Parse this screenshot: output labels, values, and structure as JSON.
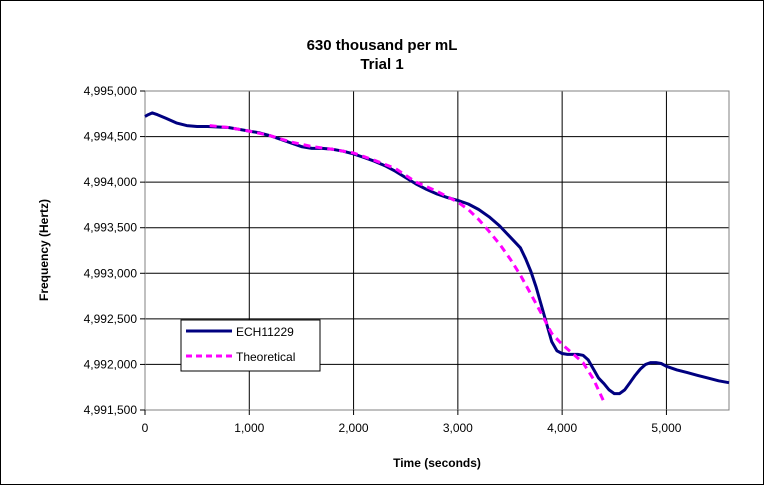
{
  "chart_data": {
    "type": "line",
    "title": "630 thousand per mL",
    "subtitle": "Trial 1",
    "xlabel": "Time (seconds)",
    "ylabel": "Frequency (Hertz)",
    "xlim": [
      0,
      5600
    ],
    "ylim": [
      4991500,
      4995000
    ],
    "x_ticks": [
      0,
      1000,
      2000,
      3000,
      4000,
      5000
    ],
    "x_tick_labels": [
      "0",
      "1,000",
      "2,000",
      "3,000",
      "4,000",
      "5,000"
    ],
    "y_ticks": [
      4991500,
      4992000,
      4992500,
      4993000,
      4993500,
      4994000,
      4994500,
      4995000
    ],
    "y_tick_labels": [
      "4,991,500",
      "4,992,000",
      "4,992,500",
      "4,993,000",
      "4,993,500",
      "4,994,000",
      "4,994,500",
      "4,995,000"
    ],
    "grid": true,
    "legend_position": "lower-left",
    "series": [
      {
        "name": "ECH11229",
        "color": "#000080",
        "style": "solid",
        "x": [
          0,
          30,
          70,
          120,
          200,
          300,
          400,
          500,
          600,
          700,
          800,
          900,
          1000,
          1100,
          1200,
          1300,
          1400,
          1500,
          1600,
          1700,
          1800,
          1900,
          2000,
          2100,
          2200,
          2300,
          2400,
          2500,
          2600,
          2700,
          2800,
          2900,
          3000,
          3100,
          3200,
          3300,
          3400,
          3500,
          3600,
          3650,
          3700,
          3750,
          3800,
          3850,
          3900,
          3950,
          4000,
          4050,
          4100,
          4150,
          4200,
          4250,
          4300,
          4350,
          4400,
          4450,
          4500,
          4550,
          4600,
          4650,
          4700,
          4750,
          4800,
          4850,
          4900,
          4950,
          5000,
          5100,
          5200,
          5300,
          5400,
          5500,
          5600
        ],
        "y": [
          4994720,
          4994740,
          4994760,
          4994740,
          4994700,
          4994650,
          4994620,
          4994610,
          4994610,
          4994605,
          4994600,
          4994580,
          4994560,
          4994540,
          4994510,
          4994470,
          4994430,
          4994390,
          4994370,
          4994370,
          4994360,
          4994340,
          4994310,
          4994270,
          4994230,
          4994180,
          4994120,
          4994050,
          4993980,
          4993920,
          4993870,
          4993830,
          4993800,
          4993760,
          4993700,
          4993620,
          4993520,
          4993400,
          4993280,
          4993160,
          4993020,
          4992850,
          4992650,
          4992450,
          4992250,
          4992150,
          4992120,
          4992110,
          4992110,
          4992110,
          4992100,
          4992050,
          4991950,
          4991850,
          4991790,
          4991720,
          4991680,
          4991680,
          4991720,
          4991800,
          4991880,
          4991950,
          4992000,
          4992020,
          4992020,
          4992010,
          4991980,
          4991940,
          4991910,
          4991880,
          4991850,
          4991820,
          4991800
        ]
      },
      {
        "name": "Theoretical",
        "color": "#FF00FF",
        "style": "dashed",
        "x": [
          620,
          800,
          1000,
          1200,
          1400,
          1600,
          1800,
          2000,
          2200,
          2400,
          2600,
          2800,
          3000,
          3100,
          3200,
          3300,
          3400,
          3500,
          3600,
          3700,
          3800,
          3900,
          4000,
          4100,
          4200,
          4300,
          4400
        ],
        "y": [
          4994620,
          4994600,
          4994560,
          4994510,
          4994440,
          4994390,
          4994360,
          4994320,
          4994240,
          4994150,
          4994000,
          4993900,
          4993780,
          4993700,
          4993590,
          4993460,
          4993320,
          4993160,
          4992980,
          4992770,
          4992560,
          4992340,
          4992220,
          4992120,
          4992020,
          4991840,
          4991590
        ]
      }
    ]
  }
}
